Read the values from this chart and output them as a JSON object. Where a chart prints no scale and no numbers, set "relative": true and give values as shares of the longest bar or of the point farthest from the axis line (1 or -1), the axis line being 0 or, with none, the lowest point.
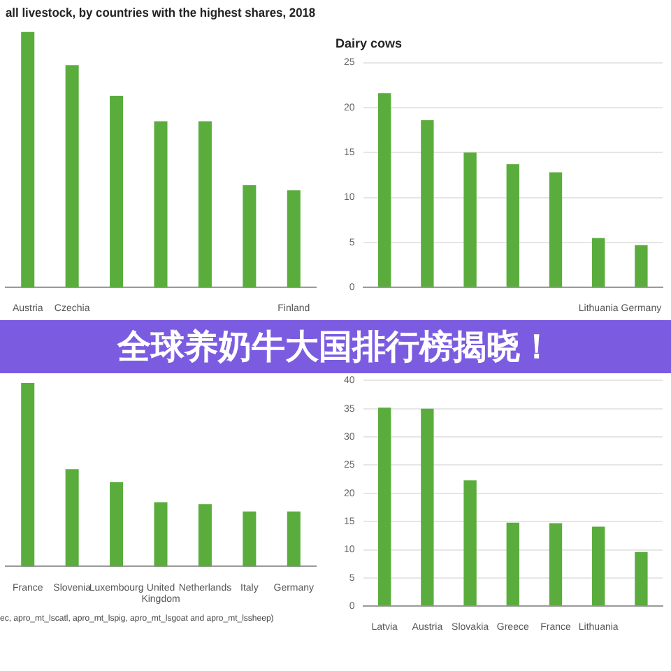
{
  "chart_data": [
    {
      "type": "bar",
      "title": "all livestock, by countries with the highest shares, 2018",
      "categories": [
        "Austria",
        "Czechia",
        null,
        null,
        null,
        null,
        "Finland"
      ],
      "values": [
        1,
        0.87,
        0.75,
        0.65,
        0.65,
        0.4,
        0.38
      ],
      "color": "#5aad3c",
      "relative": true
    },
    {
      "type": "bar",
      "title": "Dairy cows",
      "categories": [
        null,
        null,
        null,
        null,
        null,
        "Lithuania",
        "Germany"
      ],
      "values": [
        21.6,
        18.6,
        15,
        13.7,
        12.8,
        5.5,
        4.7
      ],
      "color": "#5aad3c",
      "ylim": [
        0,
        25
      ],
      "yticks": [
        0,
        5,
        10,
        15,
        20,
        25
      ],
      "grid": "y"
    },
    {
      "type": "bar",
      "categories": [
        "France",
        "Slovenia",
        "Luxembourg",
        "United Kingdom",
        "Netherlands",
        "Italy",
        "Germany"
      ],
      "values": [
        1,
        0.53,
        0.46,
        0.35,
        0.34,
        0.3,
        0.3
      ],
      "color": "#5aad3c",
      "relative": true,
      "annotations": [
        "ec, apro_mt_lscatl, apro_mt_lspig, apro_mt_lsgoat and apro_mt_lssheep)"
      ]
    },
    {
      "type": "bar",
      "categories": [
        "Latvia",
        "Austria",
        "Slovakia",
        "Greece",
        "France",
        "Lithuania",
        null
      ],
      "values": [
        35.2,
        35,
        22.3,
        14.8,
        14.7,
        14.1,
        9.6
      ],
      "color": "#5aad3c",
      "ylim": [
        0,
        40
      ],
      "yticks": [
        0,
        5,
        10,
        15,
        20,
        25,
        30,
        35,
        40
      ],
      "grid": "y"
    },
    {
      "type": "other",
      "title": "全球养奶牛大国排行榜揭晓！"
    }
  ]
}
